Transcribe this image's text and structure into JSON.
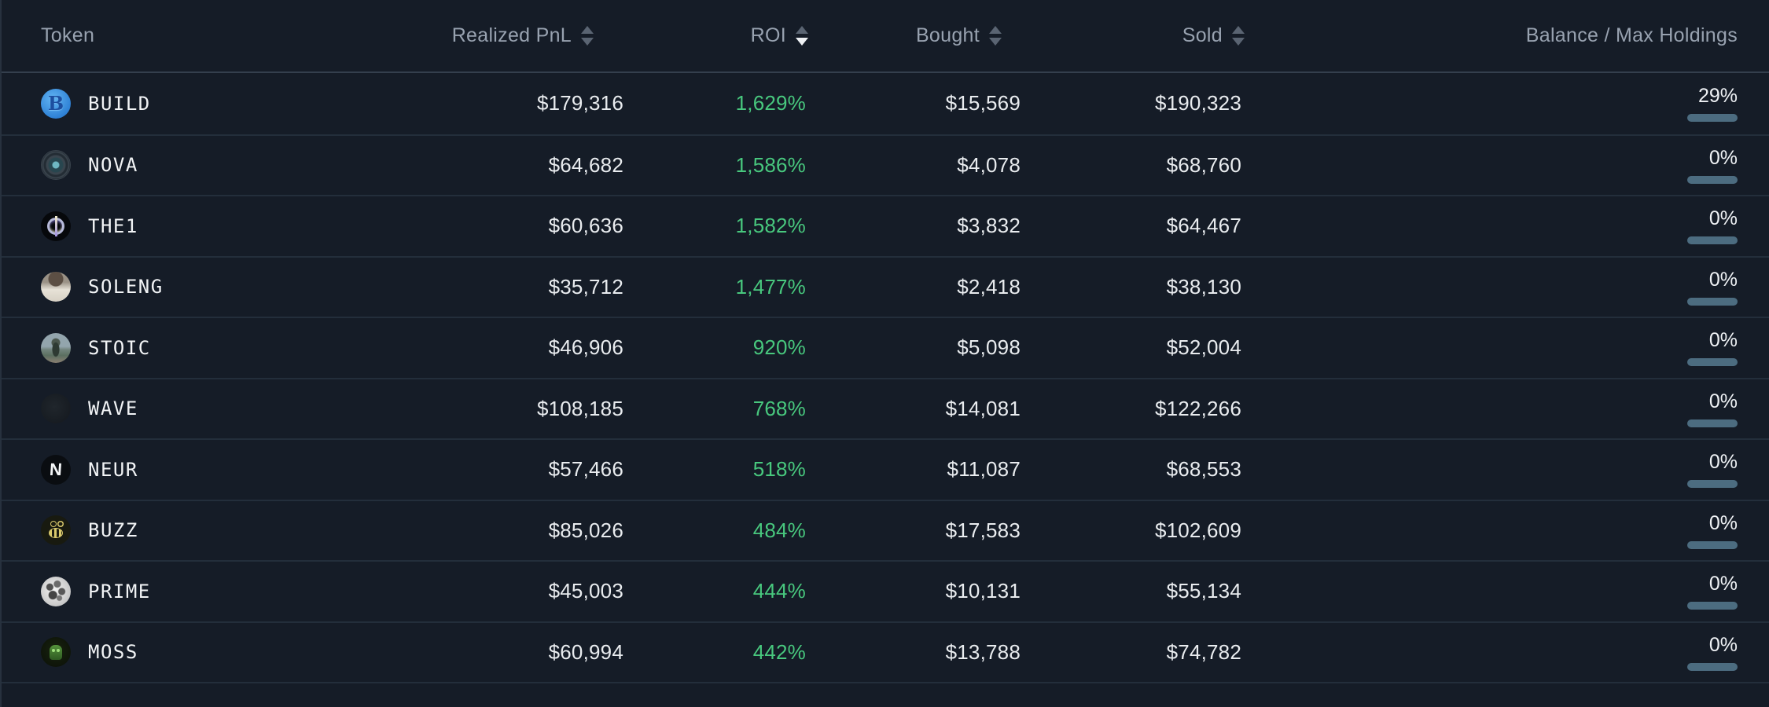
{
  "table": {
    "columns": [
      {
        "label": "Token",
        "sortable": false,
        "sort": "none"
      },
      {
        "label": "Realized PnL",
        "sortable": true,
        "sort": "none"
      },
      {
        "label": "ROI",
        "sortable": true,
        "sort": "desc"
      },
      {
        "label": "Bought",
        "sortable": true,
        "sort": "none"
      },
      {
        "label": "Sold",
        "sortable": true,
        "sort": "none"
      },
      {
        "label": "Balance / Max Holdings",
        "sortable": false,
        "sort": "none"
      }
    ],
    "rows": [
      {
        "token": "BUILD",
        "icon": "build",
        "icon_text": "B",
        "realized_pnl": "$179,316",
        "roi": "1,629%",
        "bought": "$15,569",
        "sold": "$190,323",
        "balance_pct": "29%",
        "balance_value": 29
      },
      {
        "token": "NOVA",
        "icon": "nova",
        "icon_text": "",
        "realized_pnl": "$64,682",
        "roi": "1,586%",
        "bought": "$4,078",
        "sold": "$68,760",
        "balance_pct": "0%",
        "balance_value": 0
      },
      {
        "token": "THE1",
        "icon": "the1",
        "icon_text": "",
        "realized_pnl": "$60,636",
        "roi": "1,582%",
        "bought": "$3,832",
        "sold": "$64,467",
        "balance_pct": "0%",
        "balance_value": 0
      },
      {
        "token": "SOLENG",
        "icon": "soleng",
        "icon_text": "",
        "realized_pnl": "$35,712",
        "roi": "1,477%",
        "bought": "$2,418",
        "sold": "$38,130",
        "balance_pct": "0%",
        "balance_value": 0
      },
      {
        "token": "STOIC",
        "icon": "stoic",
        "icon_text": "",
        "realized_pnl": "$46,906",
        "roi": "920%",
        "bought": "$5,098",
        "sold": "$52,004",
        "balance_pct": "0%",
        "balance_value": 0
      },
      {
        "token": "WAVE",
        "icon": "wave",
        "icon_text": "",
        "realized_pnl": "$108,185",
        "roi": "768%",
        "bought": "$14,081",
        "sold": "$122,266",
        "balance_pct": "0%",
        "balance_value": 0
      },
      {
        "token": "NEUR",
        "icon": "neur",
        "icon_text": "N",
        "realized_pnl": "$57,466",
        "roi": "518%",
        "bought": "$11,087",
        "sold": "$68,553",
        "balance_pct": "0%",
        "balance_value": 0
      },
      {
        "token": "BUZZ",
        "icon": "buzz",
        "icon_text": "",
        "realized_pnl": "$85,026",
        "roi": "484%",
        "bought": "$17,583",
        "sold": "$102,609",
        "balance_pct": "0%",
        "balance_value": 0
      },
      {
        "token": "PRIME",
        "icon": "prime",
        "icon_text": "",
        "realized_pnl": "$45,003",
        "roi": "444%",
        "bought": "$10,131",
        "sold": "$55,134",
        "balance_pct": "0%",
        "balance_value": 0
      },
      {
        "token": "MOSS",
        "icon": "moss",
        "icon_text": "",
        "realized_pnl": "$60,994",
        "roi": "442%",
        "bought": "$13,788",
        "sold": "$74,782",
        "balance_pct": "0%",
        "balance_value": 0
      }
    ]
  },
  "colors": {
    "background": "#151c27",
    "row_divider": "#232e3b",
    "header_text": "#98a2b0",
    "value_text": "#e9ecef",
    "roi_green": "#48c87e",
    "bar_track": "#4c6c80",
    "bar_fill": "#86c8ef",
    "sort_arrow_inactive": "#5a6472",
    "sort_arrow_active": "#eef1f4"
  }
}
